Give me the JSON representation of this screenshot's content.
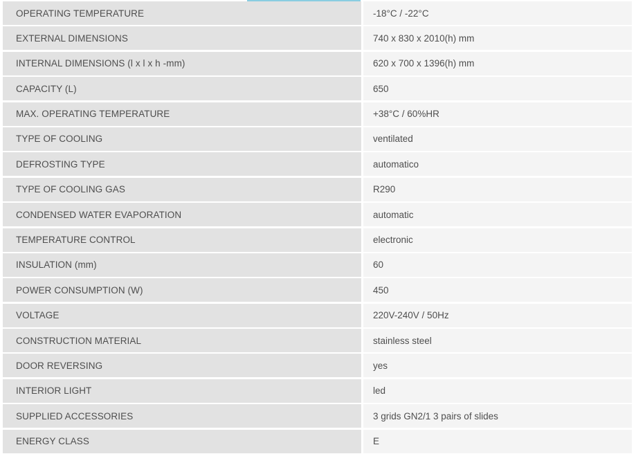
{
  "page": {
    "background": "#ffffff"
  },
  "tab_indicator": {
    "color_top": "#8acde1",
    "color_bottom": "#bce4ef"
  },
  "spec_table": {
    "colors": {
      "label_bg": "#e2e2e2",
      "value_bg": "#f4f4f4",
      "text": "#4e4e4e"
    },
    "rows": [
      {
        "label": "OPERATING TEMPERATURE",
        "value": "-18°C / -22°C"
      },
      {
        "label": "EXTERNAL DIMENSIONS",
        "value": "740 x 830 x 2010(h) mm"
      },
      {
        "label": "INTERNAL DIMENSIONS (l x l x h -mm)",
        "value": "620 x 700 x 1396(h) mm"
      },
      {
        "label": "CAPACITY (L)",
        "value": "650"
      },
      {
        "label": "MAX. OPERATING TEMPERATURE",
        "value": "+38°C / 60%HR"
      },
      {
        "label": "TYPE OF COOLING",
        "value": "ventilated"
      },
      {
        "label": "DEFROSTING TYPE",
        "value": "automatico"
      },
      {
        "label": "TYPE OF COOLING GAS",
        "value": "R290"
      },
      {
        "label": "CONDENSED WATER EVAPORATION",
        "value": "automatic"
      },
      {
        "label": "TEMPERATURE CONTROL",
        "value": "electronic"
      },
      {
        "label": "INSULATION (mm)",
        "value": "60"
      },
      {
        "label": "POWER CONSUMPTION (W)",
        "value": "450"
      },
      {
        "label": "VOLTAGE",
        "value": "220V-240V / 50Hz"
      },
      {
        "label": "CONSTRUCTION MATERIAL",
        "value": "stainless steel"
      },
      {
        "label": "DOOR REVERSING",
        "value": "yes"
      },
      {
        "label": "INTERIOR LIGHT",
        "value": "led"
      },
      {
        "label": "SUPPLIED ACCESSORIES",
        "value": "3 grids GN2/1 3 pairs of slides"
      },
      {
        "label": "ENERGY CLASS",
        "value": "E"
      }
    ]
  }
}
